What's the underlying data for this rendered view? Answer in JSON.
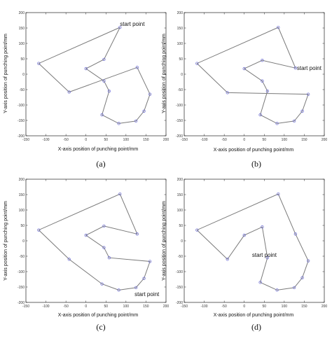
{
  "chart_data": [
    {
      "type": "line",
      "panel_label": "(a)",
      "xlabel": "X-axis position of punching point/mm",
      "ylabel": "Y-axis position of punching point/mm",
      "xlim": [
        -150,
        200
      ],
      "ylim": [
        -200,
        200
      ],
      "xticks": [
        -150,
        -100,
        -50,
        0,
        50,
        100,
        150,
        200
      ],
      "yticks": [
        -200,
        -150,
        -100,
        -50,
        0,
        50,
        100,
        150,
        200
      ],
      "points": [
        {
          "x": 85,
          "y": 152
        },
        {
          "x": 45,
          "y": 48
        },
        {
          "x": 0,
          "y": 18
        },
        {
          "x": 45,
          "y": -22
        },
        {
          "x": 58,
          "y": -55
        },
        {
          "x": 40,
          "y": -132
        },
        {
          "x": 82,
          "y": -160
        },
        {
          "x": 125,
          "y": -152
        },
        {
          "x": 145,
          "y": -120
        },
        {
          "x": 160,
          "y": -65
        },
        {
          "x": 128,
          "y": 22
        },
        {
          "x": -42,
          "y": -58
        },
        {
          "x": -118,
          "y": 35
        }
      ],
      "path_order": [
        0,
        1,
        2,
        3,
        4,
        5,
        6,
        7,
        8,
        9,
        10,
        11,
        12,
        0
      ],
      "annotation": {
        "text": "start point",
        "x": 85,
        "y": 152
      }
    },
    {
      "type": "line",
      "panel_label": "(b)",
      "xlabel": "X-axis position of punching point/mm",
      "ylabel": "Y-axis position of punching point/mm",
      "xlim": [
        -150,
        200
      ],
      "ylim": [
        -200,
        200
      ],
      "xticks": [
        -150,
        -100,
        -50,
        0,
        50,
        100,
        150,
        200
      ],
      "yticks": [
        -200,
        -150,
        -100,
        -50,
        0,
        50,
        100,
        150,
        200
      ],
      "points": [
        {
          "x": 85,
          "y": 152
        },
        {
          "x": 128,
          "y": 20
        },
        {
          "x": 45,
          "y": 45
        },
        {
          "x": 0,
          "y": 18
        },
        {
          "x": 45,
          "y": -22
        },
        {
          "x": 58,
          "y": -55
        },
        {
          "x": 40,
          "y": -132
        },
        {
          "x": 82,
          "y": -160
        },
        {
          "x": 125,
          "y": -152
        },
        {
          "x": 145,
          "y": -120
        },
        {
          "x": 160,
          "y": -65
        },
        {
          "x": -42,
          "y": -60
        },
        {
          "x": -118,
          "y": 35
        }
      ],
      "path_order": [
        0,
        1,
        2,
        3,
        4,
        5,
        6,
        7,
        8,
        9,
        10,
        11,
        12,
        0
      ],
      "annotation": {
        "text": "start point",
        "x": 128,
        "y": 20
      }
    },
    {
      "type": "line",
      "panel_label": "(c)",
      "xlabel": "X-axis position of punching point/mm",
      "ylabel": "Y-axis position of punching point/mm",
      "xlim": [
        -150,
        200
      ],
      "ylim": [
        -200,
        200
      ],
      "xticks": [
        -150,
        -100,
        -50,
        0,
        50,
        100,
        150,
        200
      ],
      "yticks": [
        -200,
        -150,
        -100,
        -50,
        0,
        50,
        100,
        150,
        200
      ],
      "points": [
        {
          "x": 82,
          "y": -160
        },
        {
          "x": 40,
          "y": -140
        },
        {
          "x": -42,
          "y": -60
        },
        {
          "x": -118,
          "y": 35
        },
        {
          "x": 85,
          "y": 152
        },
        {
          "x": 128,
          "y": 22
        },
        {
          "x": 45,
          "y": 48
        },
        {
          "x": 0,
          "y": 18
        },
        {
          "x": 45,
          "y": -22
        },
        {
          "x": 58,
          "y": -55
        },
        {
          "x": 160,
          "y": -67
        },
        {
          "x": 145,
          "y": -122
        },
        {
          "x": 125,
          "y": -152
        }
      ],
      "path_order": [
        0,
        1,
        2,
        3,
        4,
        5,
        6,
        7,
        8,
        9,
        10,
        11,
        12,
        0
      ],
      "annotation": {
        "text": "start point",
        "x": 125,
        "y": -152
      }
    },
    {
      "type": "line",
      "panel_label": "(d)",
      "xlabel": "X-axis position of punching point/mm",
      "ylabel": "Y-axis position of punching point/mm",
      "xlim": [
        -150,
        200
      ],
      "ylim": [
        -200,
        200
      ],
      "xticks": [
        -150,
        -100,
        -50,
        0,
        50,
        100,
        150,
        200
      ],
      "yticks": [
        -200,
        -150,
        -100,
        -50,
        0,
        50,
        100,
        150,
        200
      ],
      "points": [
        {
          "x": 58,
          "y": -55
        },
        {
          "x": 45,
          "y": 45
        },
        {
          "x": 0,
          "y": 18
        },
        {
          "x": -42,
          "y": -60
        },
        {
          "x": -118,
          "y": 35
        },
        {
          "x": 85,
          "y": 152
        },
        {
          "x": 128,
          "y": 22
        },
        {
          "x": 160,
          "y": -65
        },
        {
          "x": 145,
          "y": -120
        },
        {
          "x": 125,
          "y": -152
        },
        {
          "x": 82,
          "y": -160
        },
        {
          "x": 40,
          "y": -135
        }
      ],
      "path_order": [
        0,
        1,
        2,
        3,
        4,
        5,
        6,
        7,
        8,
        9,
        10,
        11,
        0
      ],
      "annotation": {
        "text": "start point",
        "x": 58,
        "y": -55
      }
    }
  ]
}
